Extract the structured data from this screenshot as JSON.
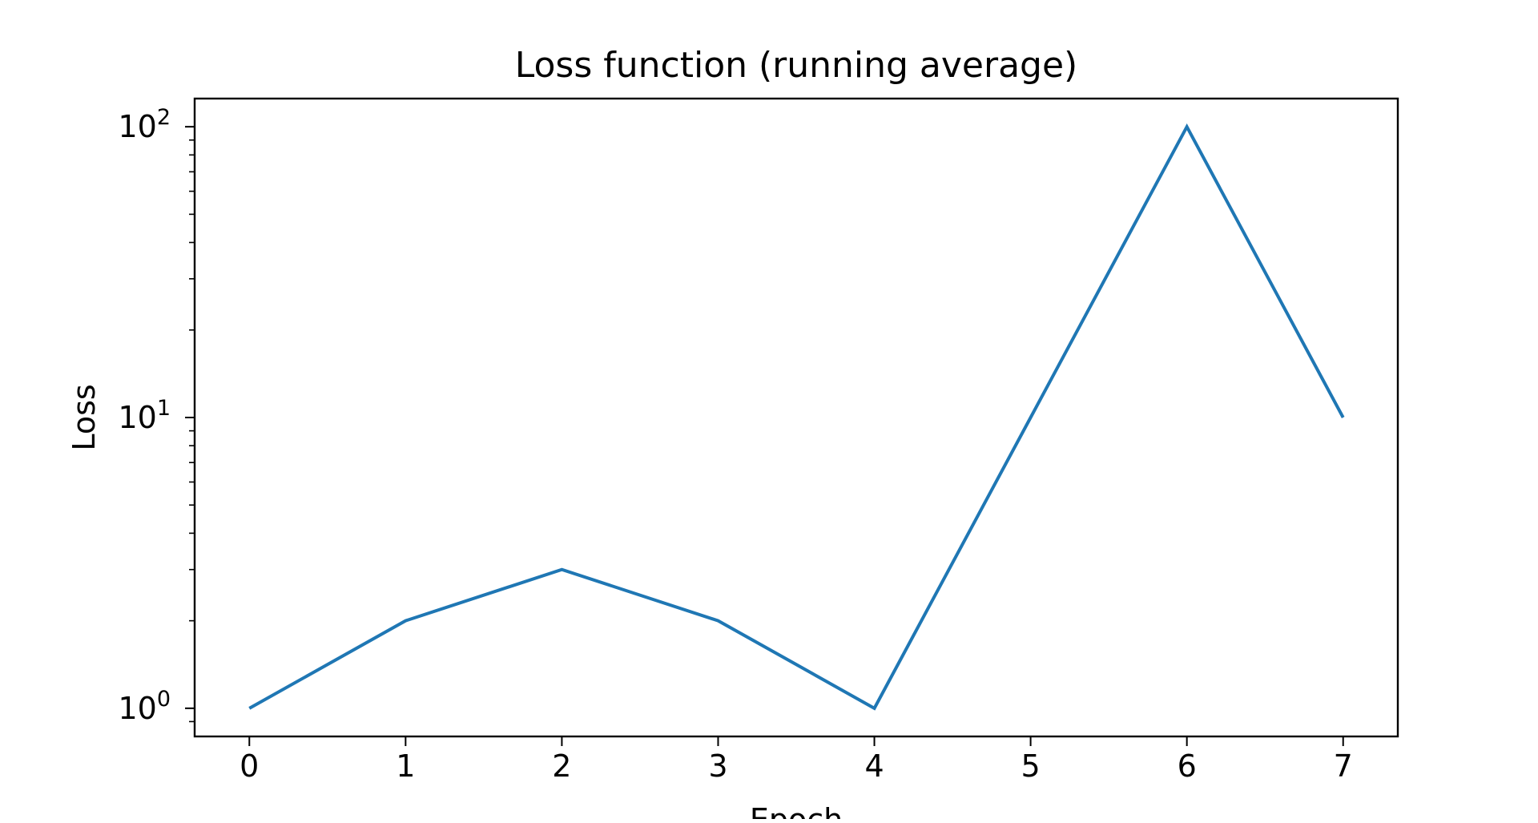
{
  "chart_data": {
    "type": "line",
    "title": "Loss function (running average)",
    "xlabel": "Epoch",
    "ylabel": "Loss",
    "yscale": "log",
    "xlim": [
      -0.35,
      7.35
    ],
    "ylim": [
      0.8,
      125
    ],
    "grid": false,
    "legend": "none",
    "x": [
      0,
      1,
      2,
      3,
      4,
      5,
      6,
      7
    ],
    "x_ticks": [
      0,
      1,
      2,
      3,
      4,
      5,
      6,
      7
    ],
    "y_ticks": [
      {
        "value": 1,
        "base": "10",
        "exp": "0"
      },
      {
        "value": 10,
        "base": "10",
        "exp": "1"
      },
      {
        "value": 100,
        "base": "10",
        "exp": "2"
      }
    ],
    "series": [
      {
        "values": [
          1,
          2,
          3,
          2,
          1,
          10,
          100,
          10
        ],
        "color": "#1f77b4"
      }
    ]
  }
}
